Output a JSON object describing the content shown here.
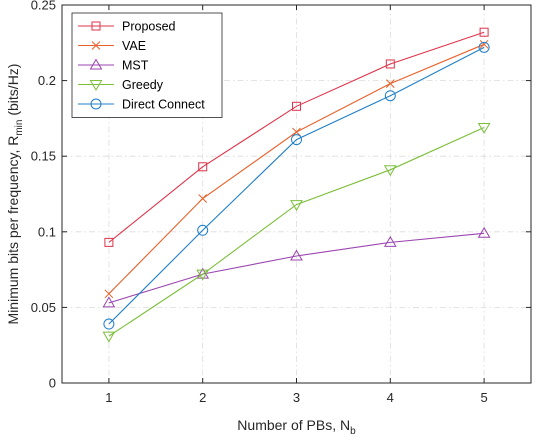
{
  "chart_data": {
    "type": "line",
    "x": [
      1,
      2,
      3,
      4,
      5
    ],
    "xlabel": {
      "main": "Number of PBs, N",
      "sub": "b"
    },
    "ylabel": {
      "main": "Minimum bits per frequency, R",
      "sub": "min",
      "unit": " (bits/Hz)"
    },
    "xlim": [
      0.5,
      5.5
    ],
    "ylim": [
      0,
      0.25
    ],
    "xticks": [
      1,
      2,
      3,
      4,
      5
    ],
    "yticks": [
      0,
      0.05,
      0.1,
      0.15,
      0.2,
      0.25
    ],
    "ytick_labels": [
      "0",
      "0.05",
      "0.1",
      "0.15",
      "0.2",
      "0.25"
    ],
    "grid": true,
    "legend_position": "top-left",
    "series": [
      {
        "name": "Proposed",
        "marker": "square",
        "color": "#e0334a",
        "values": [
          0.093,
          0.143,
          0.183,
          0.211,
          0.232
        ]
      },
      {
        "name": "VAE",
        "marker": "x",
        "color": "#e8602a",
        "values": [
          0.059,
          0.122,
          0.166,
          0.198,
          0.224
        ]
      },
      {
        "name": "MST",
        "marker": "triangle-up",
        "color": "#9b44b0",
        "values": [
          0.053,
          0.072,
          0.084,
          0.093,
          0.099
        ]
      },
      {
        "name": "Greedy",
        "marker": "triangle-down",
        "color": "#7cbf3a",
        "values": [
          0.031,
          0.072,
          0.118,
          0.141,
          0.169
        ]
      },
      {
        "name": "Direct Connect",
        "marker": "circle",
        "color": "#1f7fc8",
        "values": [
          0.039,
          0.101,
          0.161,
          0.19,
          0.222
        ]
      }
    ]
  }
}
